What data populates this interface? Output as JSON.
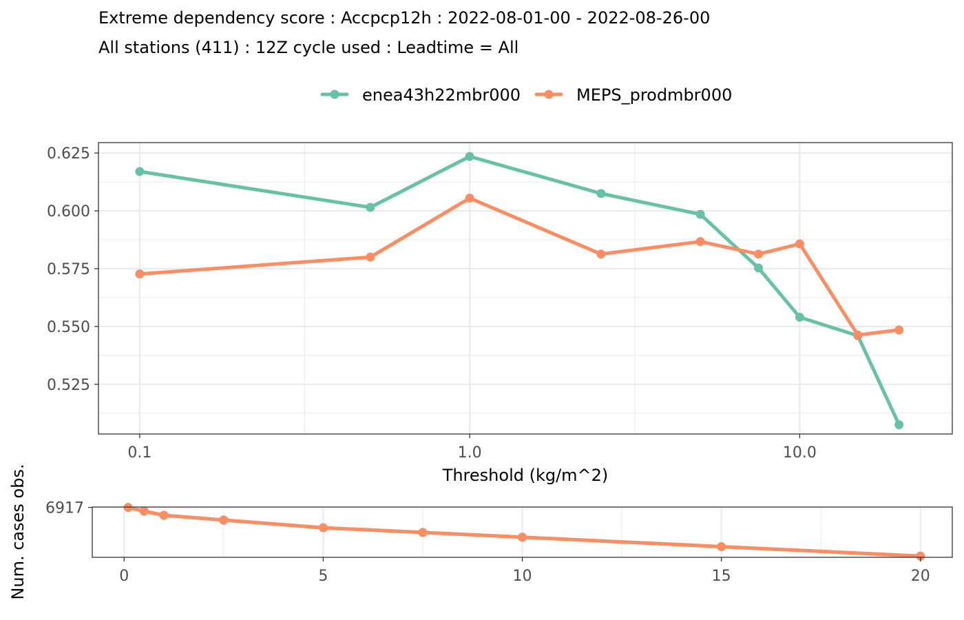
{
  "title": {
    "line1": "Extreme dependency score : Accpcp12h : 2022-08-01-00 - 2022-08-26-00",
    "line2": "All stations (411) : 12Z cycle used : Leadtime = All"
  },
  "colors": {
    "enea43h22mbr000": "#66c2a5",
    "MEPS_prodmbr000": "#fc8d62"
  },
  "chart_data": [
    {
      "type": "line",
      "xlabel": "Threshold (kg/m^2)",
      "ylabel": "",
      "xscale": "log10",
      "xlim": [
        0.075,
        29
      ],
      "ylim": [
        0.5035,
        0.6295
      ],
      "xticks": [
        0.1,
        1.0,
        10.0
      ],
      "xtick_labels": [
        "0.1",
        "1.0",
        "10.0"
      ],
      "yticks": [
        0.525,
        0.55,
        0.575,
        0.6,
        0.625
      ],
      "ytick_labels": [
        "0.525",
        "0.550",
        "0.575",
        "0.600",
        "0.625"
      ],
      "grid": true,
      "legend": "top",
      "x": [
        0.1,
        0.5,
        1,
        2.5,
        5,
        7.5,
        10,
        15,
        20
      ],
      "series": [
        {
          "name": "enea43h22mbr000",
          "values": [
            0.617,
            0.6015,
            0.6235,
            0.6075,
            0.5985,
            0.5753,
            0.554,
            0.546,
            0.5075
          ]
        },
        {
          "name": "MEPS_prodmbr000",
          "values": [
            0.5727,
            0.58,
            0.6055,
            0.5813,
            0.5867,
            0.5813,
            0.5857,
            0.5463,
            0.5485
          ]
        }
      ]
    },
    {
      "type": "line",
      "xlabel": "",
      "ylabel": "Num. cases obs.",
      "xscale": "linear",
      "xlim": [
        -0.8,
        20.8
      ],
      "ylim": [
        2700,
        6950
      ],
      "xticks": [
        0,
        5,
        10,
        15,
        20
      ],
      "xtick_labels": [
        "0",
        "5",
        "10",
        "15",
        "20"
      ],
      "yticks": [
        6917
      ],
      "ytick_labels": [
        "6917"
      ],
      "grid": true,
      "x": [
        0.1,
        0.5,
        1,
        2.5,
        5,
        7.5,
        10,
        15,
        20
      ],
      "series": [
        {
          "name": "enea43h22mbr000",
          "values": [
            6917,
            6600,
            6250,
            5850,
            5200,
            4800,
            4400,
            3600,
            2800
          ]
        },
        {
          "name": "MEPS_prodmbr000",
          "values": [
            6917,
            6600,
            6250,
            5850,
            5200,
            4800,
            4400,
            3600,
            2800
          ]
        }
      ]
    }
  ]
}
